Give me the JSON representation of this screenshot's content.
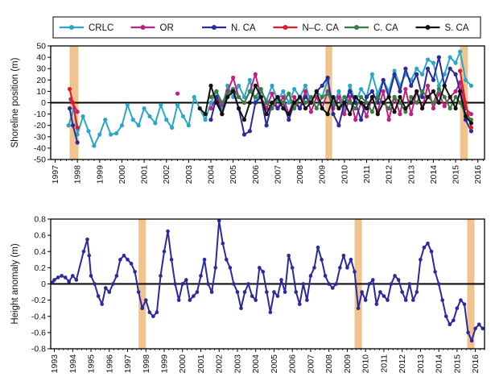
{
  "chart_data": [
    {
      "type": "line",
      "id": "shoreline",
      "xlabel": "",
      "ylabel": "Shoreline position (m)",
      "xlim": [
        1996.8,
        2016.3
      ],
      "ylim": [
        -50,
        50
      ],
      "yticks": [
        -50,
        -40,
        -30,
        -20,
        -10,
        0,
        10,
        20,
        30,
        40,
        50
      ],
      "xticks": [
        1997,
        1998,
        1999,
        2000,
        2001,
        2002,
        2003,
        2004,
        2005,
        2006,
        2007,
        2008,
        2009,
        2010,
        2011,
        2012,
        2013,
        2014,
        2015,
        2016
      ],
      "zero_line": true,
      "shaded_periods": [
        [
          1997.65,
          1998.05
        ],
        [
          2009.15,
          2009.45
        ],
        [
          2015.2,
          2015.55
        ]
      ],
      "legend": {
        "placement": "top",
        "entries": [
          "CRLC",
          "OR",
          "N. CA",
          "N–C. CA",
          "C. CA",
          "S. CA"
        ]
      },
      "series": [
        {
          "name": "CRLC",
          "color": "#2aa6c8",
          "x": [
            1997.6,
            1997.85,
            1998.0,
            1998.25,
            1998.5,
            1998.75,
            1999.0,
            1999.25,
            1999.5,
            1999.75,
            2000.0,
            2000.25,
            2000.5,
            2000.75,
            2001.0,
            2001.25,
            2001.5,
            2001.75,
            2002.0,
            2002.25,
            2002.5,
            2002.75,
            2003.0,
            2003.25,
            2003.5,
            2003.75,
            2004.0,
            2004.25,
            2004.5,
            2004.75,
            2005.0,
            2005.25,
            2005.5,
            2005.75,
            2006.0,
            2006.25,
            2006.5,
            2006.75,
            2007.0,
            2007.25,
            2007.5,
            2007.75,
            2008.0,
            2008.25,
            2008.5,
            2008.75,
            2009.0,
            2009.25,
            2009.5,
            2009.75,
            2010.0,
            2010.25,
            2010.5,
            2010.75,
            2011.0,
            2011.25,
            2011.5,
            2011.75,
            2012.0,
            2012.25,
            2012.5,
            2012.75,
            2013.0,
            2013.25,
            2013.5,
            2013.75,
            2014.0,
            2014.25,
            2014.5,
            2014.75,
            2015.0,
            2015.2,
            2015.45,
            2015.7
          ],
          "y": [
            -20,
            -5,
            -28,
            -12,
            -25,
            -38,
            -28,
            -15,
            -28,
            -27,
            -20,
            -2,
            -15,
            -20,
            -5,
            -12,
            -18,
            -2,
            -15,
            -22,
            -2,
            -12,
            -20,
            5,
            -5,
            -15,
            0,
            10,
            -5,
            15,
            5,
            15,
            5,
            20,
            0,
            10,
            2,
            15,
            2,
            10,
            0,
            12,
            5,
            15,
            0,
            10,
            5,
            20,
            -2,
            10,
            -5,
            15,
            0,
            12,
            5,
            25,
            8,
            20,
            10,
            28,
            15,
            25,
            20,
            30,
            25,
            38,
            35,
            15,
            25,
            40,
            35,
            45,
            20,
            15
          ]
        },
        {
          "name": "OR",
          "color": "#c0207f",
          "x": [
            1997.7,
            1998.0,
            2002.5,
            2004.0,
            2004.25,
            2004.5,
            2004.75,
            2005.0,
            2005.25,
            2005.5,
            2005.75,
            2006.0,
            2006.25,
            2006.5,
            2006.75,
            2007.0,
            2007.25,
            2007.5,
            2007.75,
            2008.0,
            2008.25,
            2008.5,
            2008.75,
            2009.0,
            2009.25,
            2009.5,
            2009.75,
            2010.0,
            2010.25,
            2010.5,
            2010.75,
            2011.0,
            2011.25,
            2011.5,
            2011.75,
            2012.0,
            2012.25,
            2012.5,
            2012.75,
            2013.0,
            2013.25,
            2013.5,
            2013.75,
            2014.0,
            2014.25,
            2014.5,
            2014.75,
            2015.0,
            2015.2,
            2015.45,
            2015.7
          ],
          "y": [
            3,
            -8,
            8,
            -5,
            5,
            -2,
            10,
            22,
            5,
            0,
            10,
            25,
            5,
            -5,
            8,
            -5,
            5,
            -10,
            5,
            -5,
            10,
            -8,
            5,
            -5,
            10,
            -5,
            5,
            -10,
            5,
            -15,
            0,
            -12,
            5,
            -8,
            10,
            -15,
            5,
            -10,
            12,
            -10,
            10,
            -5,
            15,
            -5,
            8,
            -3,
            5,
            10,
            18,
            -5,
            -10
          ]
        },
        {
          "name": "N. CA",
          "color": "#2a2a9e",
          "x": [
            1997.65,
            1997.8,
            1998.0,
            2004.0,
            2004.25,
            2004.5,
            2004.75,
            2005.0,
            2005.25,
            2005.5,
            2005.75,
            2006.0,
            2006.25,
            2006.5,
            2006.75,
            2007.0,
            2007.25,
            2007.5,
            2007.75,
            2008.0,
            2008.25,
            2008.5,
            2008.75,
            2009.0,
            2009.25,
            2009.5,
            2009.75,
            2010.0,
            2010.25,
            2010.5,
            2010.75,
            2011.0,
            2011.25,
            2011.5,
            2011.75,
            2012.0,
            2012.25,
            2012.5,
            2012.75,
            2013.0,
            2013.25,
            2013.5,
            2013.75,
            2014.0,
            2014.25,
            2014.5,
            2014.75,
            2015.0,
            2015.2,
            2015.45,
            2015.7
          ],
          "y": [
            -5,
            -20,
            -35,
            -15,
            5,
            -10,
            8,
            12,
            -5,
            -28,
            -25,
            0,
            5,
            -20,
            0,
            -5,
            0,
            -15,
            0,
            -5,
            5,
            0,
            10,
            15,
            22,
            -10,
            -20,
            0,
            10,
            0,
            -15,
            5,
            10,
            0,
            20,
            5,
            25,
            10,
            30,
            15,
            25,
            5,
            30,
            20,
            40,
            15,
            30,
            25,
            10,
            -15,
            -25
          ]
        },
        {
          "name": "N–C. CA",
          "color": "#e01b24",
          "x": [
            1997.65,
            1997.8,
            1998.0,
            2015.2,
            2015.45,
            2015.7
          ],
          "y": [
            12,
            0,
            -22,
            28,
            0,
            -22
          ]
        },
        {
          "name": "C. CA",
          "color": "#3a7d44",
          "x": [
            2004.0,
            2004.25,
            2004.5,
            2004.75,
            2005.0,
            2005.25,
            2005.5,
            2005.75,
            2006.0,
            2006.25,
            2006.5,
            2006.75,
            2007.0,
            2007.25,
            2007.5,
            2007.75,
            2008.0,
            2008.25,
            2008.5,
            2008.75,
            2009.0,
            2009.25,
            2009.5,
            2009.75,
            2010.0,
            2010.25,
            2010.5,
            2010.75,
            2011.0,
            2011.25,
            2011.5,
            2011.75,
            2012.0,
            2012.25,
            2012.5,
            2012.75,
            2013.0,
            2013.25,
            2013.5,
            2013.75,
            2014.0,
            2014.25,
            2014.5,
            2014.75,
            2015.0,
            2015.2,
            2015.45,
            2015.7
          ],
          "y": [
            5,
            10,
            0,
            8,
            12,
            5,
            0,
            10,
            5,
            12,
            0,
            -5,
            5,
            0,
            8,
            -5,
            5,
            0,
            5,
            -5,
            5,
            8,
            0,
            -5,
            5,
            0,
            -5,
            5,
            0,
            -8,
            5,
            0,
            -5,
            5,
            0,
            -8,
            5,
            0,
            10,
            5,
            0,
            12,
            5,
            -5,
            5,
            0,
            -10,
            -15
          ]
        },
        {
          "name": "S. CA",
          "color": "#111111",
          "x": [
            2003.5,
            2003.75,
            2004.0,
            2004.25,
            2004.5,
            2004.75,
            2005.0,
            2005.25,
            2005.5,
            2005.75,
            2006.0,
            2006.25,
            2006.5,
            2006.75,
            2007.0,
            2007.25,
            2007.5,
            2007.75,
            2008.0,
            2008.25,
            2008.5,
            2008.75,
            2009.0,
            2009.25,
            2009.5,
            2009.75,
            2010.0,
            2010.25,
            2010.5,
            2010.75,
            2011.0,
            2011.25,
            2011.5,
            2011.75,
            2012.0,
            2012.25,
            2012.5,
            2012.75,
            2013.0,
            2013.25,
            2013.5,
            2013.75,
            2014.0,
            2014.25,
            2014.5,
            2014.75,
            2015.0,
            2015.2,
            2015.45,
            2015.7
          ],
          "y": [
            -5,
            -10,
            15,
            0,
            -10,
            5,
            10,
            -5,
            -15,
            0,
            15,
            5,
            -10,
            0,
            5,
            -5,
            -10,
            0,
            5,
            -5,
            0,
            10,
            -5,
            -10,
            5,
            -5,
            0,
            -10,
            5,
            0,
            -5,
            5,
            -10,
            0,
            5,
            -8,
            5,
            -5,
            0,
            10,
            -5,
            5,
            10,
            0,
            15,
            5,
            -5,
            10,
            -12,
            -18
          ]
        }
      ]
    },
    {
      "type": "line",
      "id": "height-anomaly",
      "xlabel": "",
      "ylabel": "Height anomaly (m)",
      "xlim": [
        1992.8,
        2016.5
      ],
      "ylim": [
        -0.8,
        0.8
      ],
      "yticks": [
        -0.8,
        -0.6,
        -0.4,
        -0.2,
        0,
        0.2,
        0.4,
        0.6,
        0.8
      ],
      "xticks": [
        1993,
        1994,
        1995,
        1996,
        1997,
        1998,
        1999,
        2000,
        2001,
        2002,
        2003,
        2004,
        2005,
        2006,
        2007,
        2008,
        2009,
        2010,
        2011,
        2012,
        2013,
        2014,
        2015,
        2016
      ],
      "zero_line": true,
      "shaded_periods": [
        [
          1997.6,
          1998.0
        ],
        [
          2009.4,
          2009.8
        ],
        [
          2015.55,
          2015.95
        ]
      ],
      "series": [
        {
          "name": "Height anomaly",
          "color": "#2a2a9e",
          "x": [
            1992.9,
            1993.0,
            1993.2,
            1993.4,
            1993.6,
            1993.8,
            1994.0,
            1994.2,
            1994.6,
            1994.8,
            1994.9,
            1995.0,
            1995.2,
            1995.4,
            1995.6,
            1995.8,
            1996.0,
            1996.2,
            1996.4,
            1996.6,
            1996.8,
            1997.0,
            1997.2,
            1997.4,
            1997.6,
            1997.8,
            1998.0,
            1998.2,
            1998.4,
            1998.6,
            1998.8,
            1999.0,
            1999.2,
            1999.4,
            1999.6,
            1999.8,
            2000.0,
            2000.2,
            2000.4,
            2000.6,
            2000.8,
            2001.0,
            2001.2,
            2001.4,
            2001.6,
            2001.8,
            2002.0,
            2002.2,
            2002.4,
            2002.6,
            2002.8,
            2003.0,
            2003.2,
            2003.4,
            2003.6,
            2003.8,
            2004.0,
            2004.2,
            2004.4,
            2004.6,
            2004.8,
            2005.0,
            2005.2,
            2005.4,
            2005.6,
            2005.8,
            2006.0,
            2006.2,
            2006.4,
            2006.6,
            2006.8,
            2007.0,
            2007.2,
            2007.4,
            2007.6,
            2007.8,
            2008.0,
            2008.2,
            2008.4,
            2008.6,
            2008.8,
            2009.0,
            2009.2,
            2009.4,
            2009.6,
            2009.8,
            2010.0,
            2010.2,
            2010.4,
            2010.6,
            2010.8,
            2011.0,
            2011.2,
            2011.4,
            2011.6,
            2011.8,
            2012.0,
            2012.2,
            2012.4,
            2012.6,
            2012.8,
            2013.0,
            2013.2,
            2013.4,
            2013.6,
            2013.8,
            2014.0,
            2014.2,
            2014.4,
            2014.6,
            2014.8,
            2015.0,
            2015.2,
            2015.4,
            2015.6,
            2015.8,
            2016.0,
            2016.2,
            2016.4
          ],
          "y": [
            0.02,
            0.05,
            0.08,
            0.1,
            0.08,
            0.03,
            0.1,
            0.05,
            0.4,
            0.55,
            0.35,
            0.1,
            0.0,
            -0.15,
            -0.25,
            -0.05,
            -0.1,
            0.0,
            0.1,
            0.3,
            0.35,
            0.3,
            0.25,
            0.15,
            -0.1,
            -0.3,
            -0.2,
            -0.35,
            -0.4,
            -0.35,
            0.1,
            0.4,
            0.65,
            0.3,
            0.0,
            -0.2,
            0.0,
            0.05,
            -0.2,
            -0.15,
            -0.1,
            0.1,
            0.3,
            0.0,
            -0.1,
            0.2,
            0.78,
            0.5,
            0.3,
            0.2,
            0.0,
            -0.1,
            -0.3,
            -0.1,
            0.0,
            -0.15,
            -0.2,
            0.2,
            0.15,
            -0.1,
            -0.35,
            -0.1,
            -0.15,
            0.05,
            -0.1,
            0.35,
            0.2,
            -0.1,
            -0.25,
            0.0,
            -0.2,
            0.1,
            0.2,
            0.45,
            0.3,
            0.1,
            0.0,
            -0.05,
            0.0,
            0.2,
            0.35,
            0.2,
            0.3,
            0.15,
            -0.3,
            -0.1,
            -0.2,
            0.0,
            0.05,
            -0.25,
            -0.1,
            -0.15,
            -0.2,
            0.0,
            0.1,
            0.05,
            -0.1,
            -0.2,
            0.0,
            -0.2,
            -0.1,
            0.3,
            0.45,
            0.5,
            0.4,
            0.15,
            0.0,
            -0.2,
            -0.4,
            -0.5,
            -0.45,
            -0.3,
            -0.2,
            -0.25,
            -0.6,
            -0.7,
            -0.55,
            -0.5,
            -0.55
          ]
        }
      ]
    }
  ]
}
